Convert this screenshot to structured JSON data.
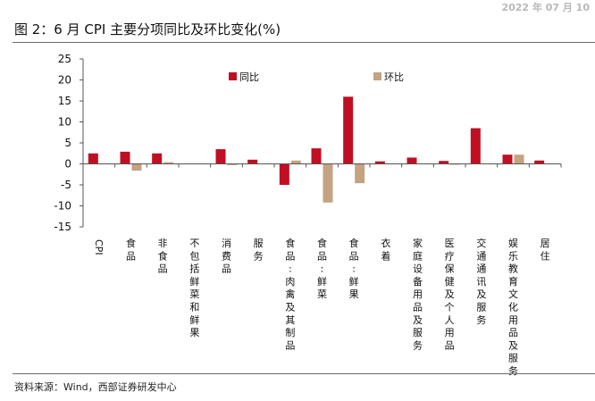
{
  "header": {
    "date": "2022 年 07 月 10"
  },
  "title": "图 2：6 月 CPI 主要分项同比及环比变化(%)",
  "source": "资料来源：Wind，西部证券研发中心",
  "colors": {
    "yoy": "#c00f22",
    "mom": "#c3a382",
    "axis": "#555555"
  },
  "chart_data": {
    "type": "bar",
    "title": "6 月 CPI 主要分项同比及环比变化(%)",
    "xlabel": "",
    "ylabel": "",
    "ylim": [
      -15,
      25
    ],
    "yticks": [
      25,
      20,
      15,
      10,
      5,
      0,
      -5,
      -10,
      -15
    ],
    "legend_position": "top",
    "categories": [
      "CPI",
      "食品",
      "非食品",
      "不包括鲜菜和鲜果",
      "消费品",
      "服务",
      "食品:肉禽及其制品",
      "食品:鲜菜",
      "食品:鲜果",
      "衣着",
      "家庭设备用品及服务",
      "医疗保健及个人用品",
      "交通通讯及服务",
      "娱乐教育文化用品及服务",
      "居住"
    ],
    "series": [
      {
        "name": "同比",
        "values": [
          2.5,
          2.9,
          2.5,
          0.0,
          3.5,
          1.0,
          -5.0,
          3.7,
          16.0,
          0.6,
          1.5,
          0.7,
          8.5,
          2.2,
          0.8
        ]
      },
      {
        "name": "环比",
        "values": [
          0.0,
          -1.6,
          0.4,
          0.0,
          -0.3,
          0.1,
          0.8,
          -9.2,
          -4.6,
          -0.1,
          0.0,
          -0.2,
          0.0,
          2.2,
          0.0
        ]
      }
    ]
  }
}
